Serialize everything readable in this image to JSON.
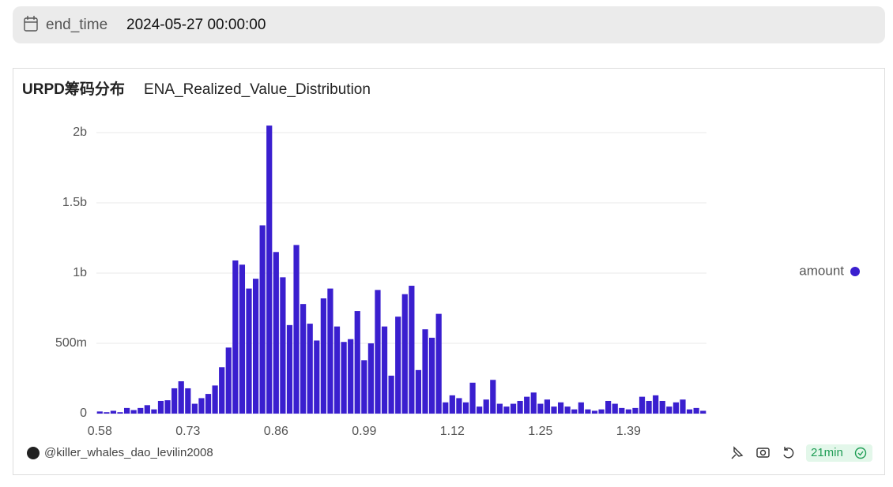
{
  "filter": {
    "label": "end_time",
    "value": "2024-05-27 00:00:00"
  },
  "chart_data": {
    "type": "bar",
    "title": "URPD筹码分布",
    "subtitle": "ENA_Realized_Value_Distribution",
    "categories": [
      "0.58",
      null,
      null,
      null,
      null,
      null,
      null,
      null,
      null,
      null,
      null,
      null,
      null,
      "0.73",
      null,
      null,
      null,
      null,
      null,
      null,
      null,
      null,
      null,
      null,
      null,
      null,
      "0.86",
      null,
      null,
      null,
      null,
      null,
      null,
      null,
      null,
      null,
      null,
      null,
      null,
      "0.99",
      null,
      null,
      null,
      null,
      null,
      null,
      null,
      null,
      null,
      null,
      null,
      null,
      "1.12",
      null,
      null,
      null,
      null,
      null,
      null,
      null,
      null,
      null,
      null,
      null,
      null,
      "1.25",
      null,
      null,
      null,
      null,
      null,
      null,
      null,
      null,
      null,
      null,
      null,
      null,
      "1.39",
      null,
      null,
      null,
      null,
      null,
      null,
      null,
      null,
      null,
      null,
      null
    ],
    "series": [
      {
        "name": "amount",
        "color": "#3a1fcf",
        "values": [
          15000000,
          10000000,
          20000000,
          10000000,
          40000000,
          25000000,
          40000000,
          60000000,
          30000000,
          90000000,
          95000000,
          180000000,
          230000000,
          180000000,
          70000000,
          110000000,
          140000000,
          200000000,
          330000000,
          470000000,
          1090000000,
          1060000000,
          890000000,
          960000000,
          1340000000,
          2050000000,
          1150000000,
          970000000,
          630000000,
          1200000000,
          780000000,
          640000000,
          520000000,
          820000000,
          890000000,
          620000000,
          510000000,
          530000000,
          730000000,
          380000000,
          500000000,
          880000000,
          620000000,
          270000000,
          690000000,
          850000000,
          910000000,
          310000000,
          600000000,
          540000000,
          710000000,
          80000000,
          130000000,
          110000000,
          80000000,
          220000000,
          50000000,
          100000000,
          240000000,
          70000000,
          50000000,
          70000000,
          90000000,
          120000000,
          150000000,
          70000000,
          100000000,
          50000000,
          80000000,
          50000000,
          30000000,
          80000000,
          30000000,
          20000000,
          30000000,
          90000000,
          70000000,
          40000000,
          30000000,
          40000000,
          120000000,
          90000000,
          130000000,
          90000000,
          50000000,
          80000000,
          100000000,
          30000000,
          40000000,
          20000000
        ]
      }
    ],
    "ylim": [
      0,
      2100000000
    ],
    "yticks": [
      0,
      {
        "value": 500000000,
        "label": "500m"
      },
      {
        "value": 1000000000,
        "label": "1b"
      },
      {
        "value": 1500000000,
        "label": "1.5b"
      },
      {
        "value": 2000000000,
        "label": "2b"
      }
    ],
    "grid": true,
    "legend": "right"
  },
  "footer": {
    "user": "@killer_whales_dao_levilin2008",
    "age": "21min"
  }
}
